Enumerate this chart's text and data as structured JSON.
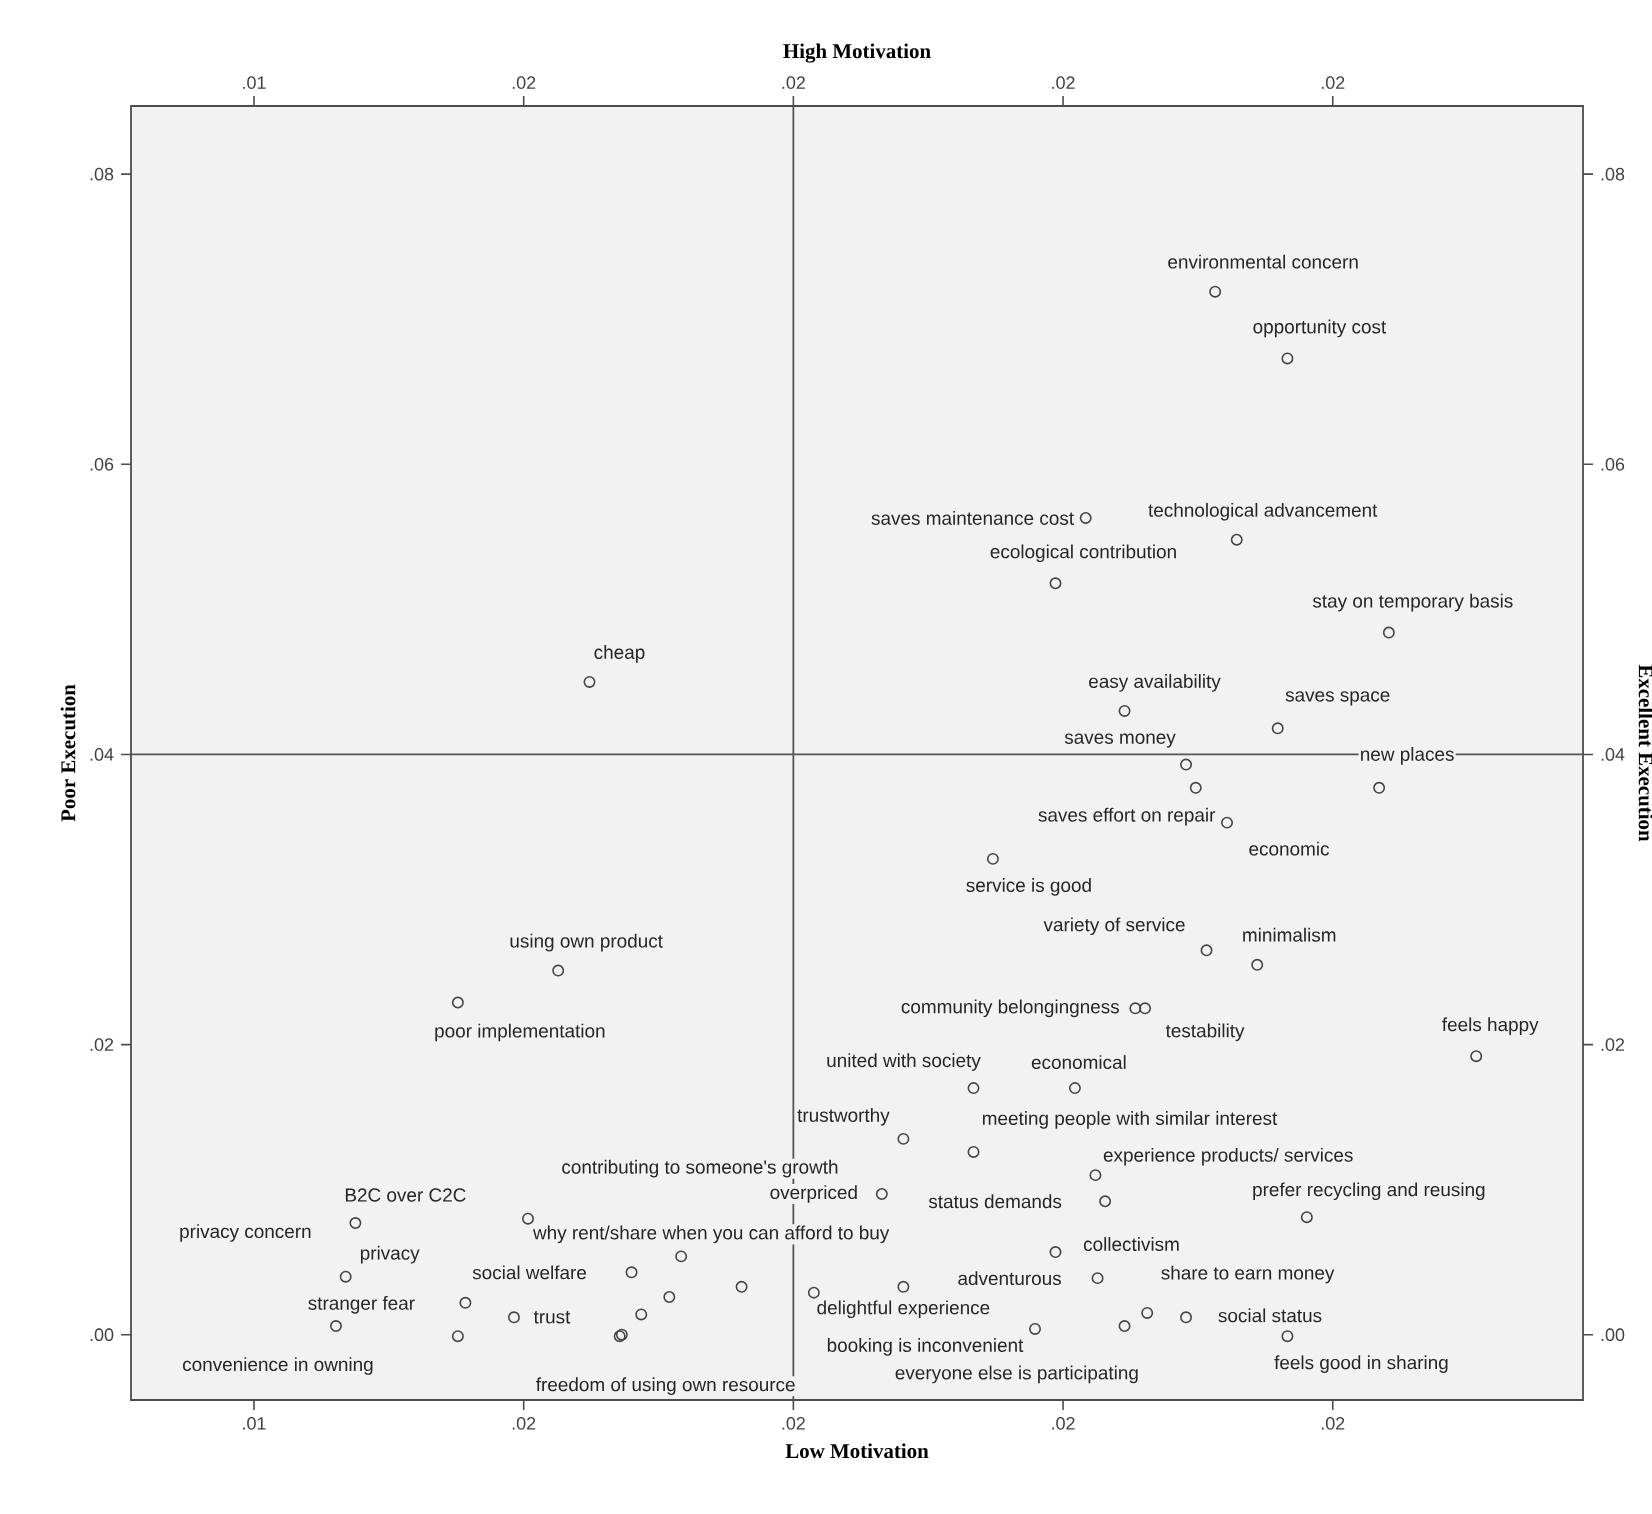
{
  "chart_data": {
    "type": "scatter",
    "xlabel": "Low Motivation",
    "x2label": "High Motivation",
    "ylabel": "Poor Execution",
    "y2label": "Excellent Execution",
    "xlim": [
      0.01136,
      0.02482
    ],
    "x2lim": [
      0.01136,
      0.02482
    ],
    "xticks": [
      {
        "value": 0.0125,
        "label": ".01"
      },
      {
        "value": 0.015,
        "label": ".02"
      },
      {
        "value": 0.0175,
        "label": ".02"
      },
      {
        "value": 0.02,
        "label": ".02"
      },
      {
        "value": 0.0225,
        "label": ".02"
      }
    ],
    "x2ticks": [
      {
        "value": 0.0125,
        "label": ".01"
      },
      {
        "value": 0.015,
        "label": ".02"
      },
      {
        "value": 0.0175,
        "label": ".02"
      },
      {
        "value": 0.02,
        "label": ".02"
      },
      {
        "value": 0.0225,
        "label": ".02"
      }
    ],
    "ylim": [
      -0.0045,
      0.0847
    ],
    "y2lim": [
      -0.0045,
      0.0847
    ],
    "yticks": [
      {
        "value": 0,
        "label": ".00"
      },
      {
        "value": 0.02,
        "label": ".02"
      },
      {
        "value": 0.04,
        "label": ".04"
      },
      {
        "value": 0.06,
        "label": ".06"
      },
      {
        "value": 0.08,
        "label": ".08"
      }
    ],
    "y2ticks": [
      {
        "value": 0,
        "label": ".00"
      },
      {
        "value": 0.02,
        "label": ".02"
      },
      {
        "value": 0.04,
        "label": ".04"
      },
      {
        "value": 0.06,
        "label": ".06"
      },
      {
        "value": 0.08,
        "label": ".08"
      }
    ],
    "marker": "circle",
    "ref_lines": [
      {
        "axis": "x",
        "value": 0.0175,
        "color": "#555555"
      },
      {
        "axis": "y",
        "value": 0.04,
        "color": "#555555"
      }
    ],
    "series": [
      {
        "color": "#444444",
        "x": [
          0.02141,
          0.02208,
          0.02021,
          0.02161,
          0.01993,
          0.02302,
          0.02057,
          0.02199,
          0.02114,
          0.02123,
          0.02293,
          0.02152,
          0.01935,
          0.01561,
          0.01532,
          0.01439,
          0.02133,
          0.0218,
          0.02067,
          0.02076,
          0.02383,
          0.01917,
          0.02011,
          0.01852,
          0.01917,
          0.0203,
          0.01832,
          0.02039,
          0.02226,
          0.01993,
          0.02078,
          0.02032,
          0.01974,
          0.01852,
          0.02057,
          0.02114,
          0.02208,
          0.01344,
          0.01335,
          0.01446,
          0.01326,
          0.01491,
          0.016,
          0.01504,
          0.01646,
          0.01589,
          0.01591,
          0.01439,
          0.01609,
          0.01635,
          0.01702,
          0.01769
        ],
        "values": [
          0.0719,
          0.0673,
          0.0563,
          0.0548,
          0.0518,
          0.0484,
          0.043,
          0.0418,
          0.0393,
          0.0377,
          0.0377,
          0.0353,
          0.0328,
          0.045,
          0.0251,
          0.0229,
          0.0265,
          0.0255,
          0.0225,
          0.0225,
          0.0192,
          0.017,
          0.017,
          0.0135,
          0.0126,
          0.011,
          0.0097,
          0.0092,
          0.0081,
          0.0057,
          0.0015,
          0.0039,
          0.0004,
          0.0033,
          0.0006,
          0.0012,
          -0.0001,
          0.0077,
          0.004,
          0.0022,
          0.0006,
          0.0012,
          0.0043,
          0.008,
          0.0054,
          -0.0001,
          0.0,
          -0.0001,
          0.0014,
          0.0026,
          0.0033,
          0.0029
        ]
      }
    ],
    "annotations": [
      {
        "text": "environmental concern",
        "x": 0.02141,
        "y": 0.0719
      },
      {
        "text": "opportunity cost",
        "x": 0.02208,
        "y": 0.0673
      },
      {
        "text": "saves maintenance cost",
        "x": 0.02021,
        "y": 0.0563
      },
      {
        "text": "technological advancement",
        "x": 0.02161,
        "y": 0.0548
      },
      {
        "text": "ecological contribution",
        "x": 0.01993,
        "y": 0.0518
      },
      {
        "text": "stay on temporary basis",
        "x": 0.02302,
        "y": 0.0484
      },
      {
        "text": "easy availability",
        "x": 0.02057,
        "y": 0.043
      },
      {
        "text": "saves space",
        "x": 0.02199,
        "y": 0.0418
      },
      {
        "text": "saves money",
        "x": 0.02114,
        "y": 0.0393
      },
      {
        "text": "new places",
        "x": 0.02293,
        "y": 0.0377
      },
      {
        "text": "saves effort on repair",
        "x": 0.02152,
        "y": 0.0353
      },
      {
        "text": "economic",
        "x": 0.02152,
        "y": 0.0353
      },
      {
        "text": "service is good",
        "x": 0.01935,
        "y": 0.0328
      },
      {
        "text": "cheap",
        "x": 0.01561,
        "y": 0.045
      },
      {
        "text": "using own product",
        "x": 0.01532,
        "y": 0.0251
      },
      {
        "text": "poor implementation",
        "x": 0.01439,
        "y": 0.0229
      },
      {
        "text": "variety of service",
        "x": 0.02133,
        "y": 0.0265
      },
      {
        "text": "minimalism",
        "x": 0.0218,
        "y": 0.0255
      },
      {
        "text": "community belongingness",
        "x": 0.02067,
        "y": 0.0225
      },
      {
        "text": "testability",
        "x": 0.02076,
        "y": 0.0225
      },
      {
        "text": "feels happy",
        "x": 0.02383,
        "y": 0.0192
      },
      {
        "text": "united with society",
        "x": 0.01917,
        "y": 0.017
      },
      {
        "text": "economical",
        "x": 0.02011,
        "y": 0.017
      },
      {
        "text": "trustworthy",
        "x": 0.01852,
        "y": 0.0135
      },
      {
        "text": "meeting people with similar interest",
        "x": 0.01917,
        "y": 0.0126
      },
      {
        "text": "experience products/ services",
        "x": 0.0203,
        "y": 0.011
      },
      {
        "text": "overpriced",
        "x": 0.01832,
        "y": 0.0097
      },
      {
        "text": "status demands",
        "x": 0.02039,
        "y": 0.0092
      },
      {
        "text": "prefer recycling and reusing",
        "x": 0.02226,
        "y": 0.0081
      },
      {
        "text": "collectivism",
        "x": 0.01993,
        "y": 0.0057
      },
      {
        "text": "share to earn money",
        "x": 0.02078,
        "y": 0.0015
      },
      {
        "text": "adventurous",
        "x": 0.02032,
        "y": 0.0039
      },
      {
        "text": "delightful experience",
        "x": 0.01852,
        "y": 0.0033
      },
      {
        "text": "booking is inconvenient",
        "x": 0.01974,
        "y": 0.0004
      },
      {
        "text": "everyone else is participating",
        "x": 0.02057,
        "y": 0.0006
      },
      {
        "text": "social status",
        "x": 0.02114,
        "y": 0.0012
      },
      {
        "text": "feels good in sharing",
        "x": 0.02208,
        "y": -0.0001
      },
      {
        "text": "B2C over C2C",
        "x": 0.01344,
        "y": 0.0077
      },
      {
        "text": "privacy concern",
        "x": 0.01344,
        "y": 0.0077
      },
      {
        "text": "privacy",
        "x": 0.01335,
        "y": 0.004
      },
      {
        "text": "stranger fear",
        "x": 0.01446,
        "y": 0.0022
      },
      {
        "text": "convenience in owning",
        "x": 0.01326,
        "y": 0.0006
      },
      {
        "text": "trust",
        "x": 0.01491,
        "y": 0.0012
      },
      {
        "text": "social welfare",
        "x": 0.016,
        "y": 0.0043
      },
      {
        "text": "contributing to someone's growth",
        "x": 0.01504,
        "y": 0.008
      },
      {
        "text": "why rent/share when you can afford to buy",
        "x": 0.01646,
        "y": 0.0054
      },
      {
        "text": "freedom of using own resource",
        "x": 0.01589,
        "y": -0.0001
      }
    ]
  }
}
